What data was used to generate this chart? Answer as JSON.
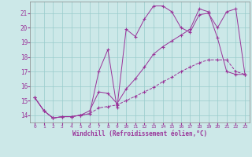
{
  "title": "",
  "xlabel": "Windchill (Refroidissement éolien,°C)",
  "background_color": "#cce8e8",
  "grid_color": "#99cccc",
  "line_color": "#993399",
  "xlim": [
    -0.5,
    23.5
  ],
  "ylim": [
    13.5,
    21.8
  ],
  "yticks": [
    14,
    15,
    16,
    17,
    18,
    19,
    20,
    21
  ],
  "xticks": [
    0,
    1,
    2,
    3,
    4,
    5,
    6,
    7,
    8,
    9,
    10,
    11,
    12,
    13,
    14,
    15,
    16,
    17,
    18,
    19,
    20,
    21,
    22,
    23
  ],
  "series1_x": [
    0,
    1,
    2,
    3,
    4,
    5,
    6,
    7,
    8,
    9,
    10,
    11,
    12,
    13,
    14,
    15,
    16,
    17,
    18,
    19,
    20,
    21,
    22,
    23
  ],
  "series1_y": [
    15.2,
    14.3,
    13.8,
    13.9,
    13.9,
    14.0,
    14.1,
    14.5,
    14.6,
    14.7,
    15.0,
    15.3,
    15.6,
    15.9,
    16.3,
    16.6,
    17.0,
    17.3,
    17.6,
    17.8,
    17.8,
    17.8,
    17.0,
    16.8
  ],
  "series2_x": [
    0,
    1,
    2,
    3,
    4,
    5,
    6,
    7,
    8,
    9,
    10,
    11,
    12,
    13,
    14,
    15,
    16,
    17,
    18,
    19,
    20,
    21,
    22,
    23
  ],
  "series2_y": [
    15.2,
    14.3,
    13.8,
    13.9,
    13.9,
    14.0,
    14.3,
    15.6,
    15.5,
    14.8,
    15.8,
    16.5,
    17.3,
    18.2,
    18.7,
    19.1,
    19.5,
    19.9,
    21.3,
    21.1,
    19.3,
    17.0,
    16.8,
    16.8
  ],
  "series3_x": [
    0,
    1,
    2,
    3,
    4,
    5,
    6,
    7,
    8,
    9,
    10,
    11,
    12,
    13,
    14,
    15,
    16,
    17,
    18,
    19,
    20,
    21,
    22,
    23
  ],
  "series3_y": [
    15.2,
    14.3,
    13.8,
    13.9,
    13.9,
    14.0,
    14.1,
    17.0,
    18.5,
    14.5,
    19.9,
    19.4,
    20.6,
    21.5,
    21.5,
    21.1,
    20.0,
    19.7,
    20.9,
    21.0,
    20.0,
    21.1,
    21.3,
    16.8
  ]
}
